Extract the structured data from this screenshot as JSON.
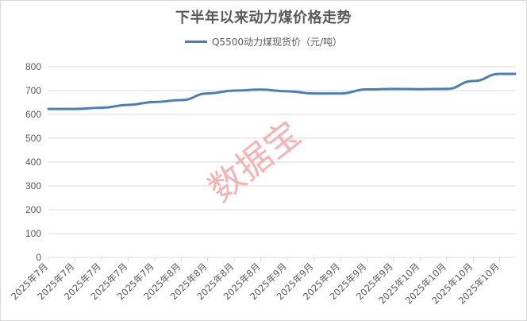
{
  "chart_data": {
    "type": "line",
    "title": "下半年以来动力煤价格走势",
    "legend": {
      "position": "top",
      "entries": [
        "Q5500动力煤现货价（元/吨）"
      ]
    },
    "xlabel": "",
    "ylabel": "",
    "ylim": [
      0,
      800
    ],
    "yticks": [
      0,
      100,
      200,
      300,
      400,
      500,
      600,
      700,
      800
    ],
    "grid": {
      "horizontal": true,
      "vertical": false
    },
    "categories": [
      "2025年7月",
      "2025年7月",
      "2025年7月",
      "2025年7月",
      "2025年7月",
      "2025年8月",
      "2025年8月",
      "2025年8月",
      "2025年8月",
      "2025年9月",
      "2025年9月",
      "2025年9月",
      "2025年9月",
      "2025年9月",
      "2025年10月",
      "2025年10月",
      "2025年10月",
      "2025年10月"
    ],
    "series": [
      {
        "name": "Q5500动力煤现货价（元/吨）",
        "color": "#4a7ebb",
        "values": [
          623,
          623,
          628,
          640,
          652,
          660,
          688,
          700,
          704,
          697,
          688,
          688,
          705,
          707,
          706,
          707,
          740,
          770
        ],
        "end_value": 770
      }
    ],
    "watermark": "数据宝"
  },
  "colors": {
    "line": "#4a7ebb",
    "grid": "#d9d9d9",
    "text": "#595959",
    "watermark": "#f4a6a6"
  }
}
